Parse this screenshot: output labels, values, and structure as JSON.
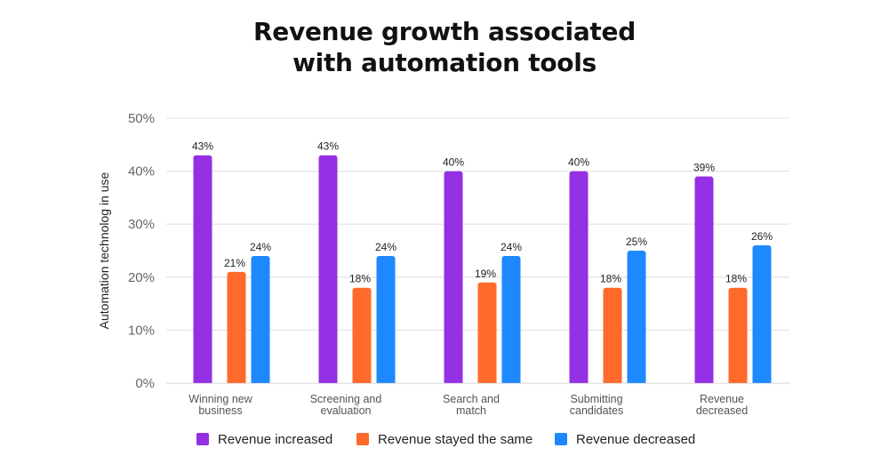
{
  "chart_data": {
    "type": "bar",
    "title_lines": [
      "Revenue growth associated",
      "with automation tools"
    ],
    "xlabel": "",
    "ylabel": "Automation technolog in use",
    "ylim": [
      0,
      50
    ],
    "yticks": [
      0,
      10,
      20,
      30,
      40,
      50
    ],
    "ytick_labels": [
      "0%",
      "10%",
      "20%",
      "30%",
      "40%",
      "50%"
    ],
    "grid": true,
    "legend_position": "bottom",
    "categories": [
      [
        "Winning new",
        "business"
      ],
      [
        "Screening and",
        "evaluation"
      ],
      [
        "Search and",
        "match"
      ],
      [
        "Submitting",
        "candidates"
      ],
      [
        "Revenue",
        "decreased"
      ]
    ],
    "series": [
      {
        "name": "Revenue increased",
        "color": "#9430E3",
        "values": [
          43,
          43,
          40,
          40,
          39
        ],
        "labels": [
          "43%",
          "43%",
          "40%",
          "40%",
          "39%"
        ]
      },
      {
        "name": "Revenue stayed the same",
        "color": "#FF6A2B",
        "values": [
          21,
          18,
          19,
          18,
          18
        ],
        "labels": [
          "21%",
          "18%",
          "19%",
          "18%",
          "18%"
        ]
      },
      {
        "name": "Revenue decreased",
        "color": "#1E88FF",
        "values": [
          24,
          24,
          24,
          25,
          26
        ],
        "labels": [
          "24%",
          "24%",
          "24%",
          "25%",
          "26%"
        ]
      }
    ],
    "gridline_color": "#e6e6e6"
  }
}
